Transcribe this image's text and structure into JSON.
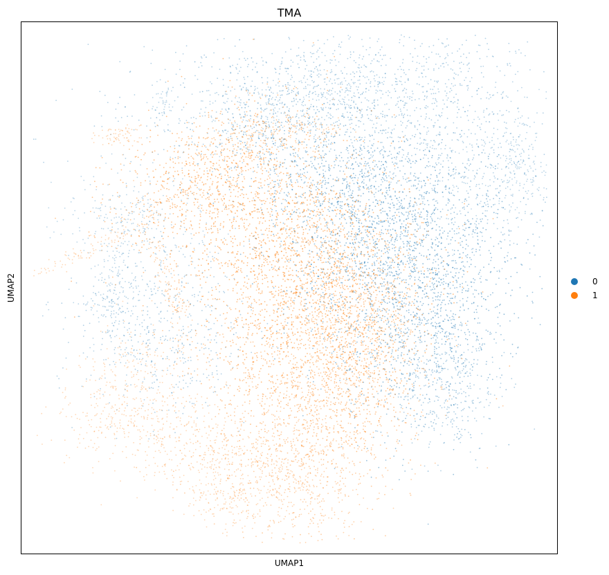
{
  "chart_data": {
    "type": "scatter",
    "title": "TMA",
    "xlabel": "UMAP1",
    "ylabel": "UMAP2",
    "grid": false,
    "ticks": false,
    "legend_position": "right",
    "series": [
      {
        "name": "0",
        "color": "#1f77b4"
      },
      {
        "name": "1",
        "color": "#ff7f0e"
      }
    ]
  }
}
